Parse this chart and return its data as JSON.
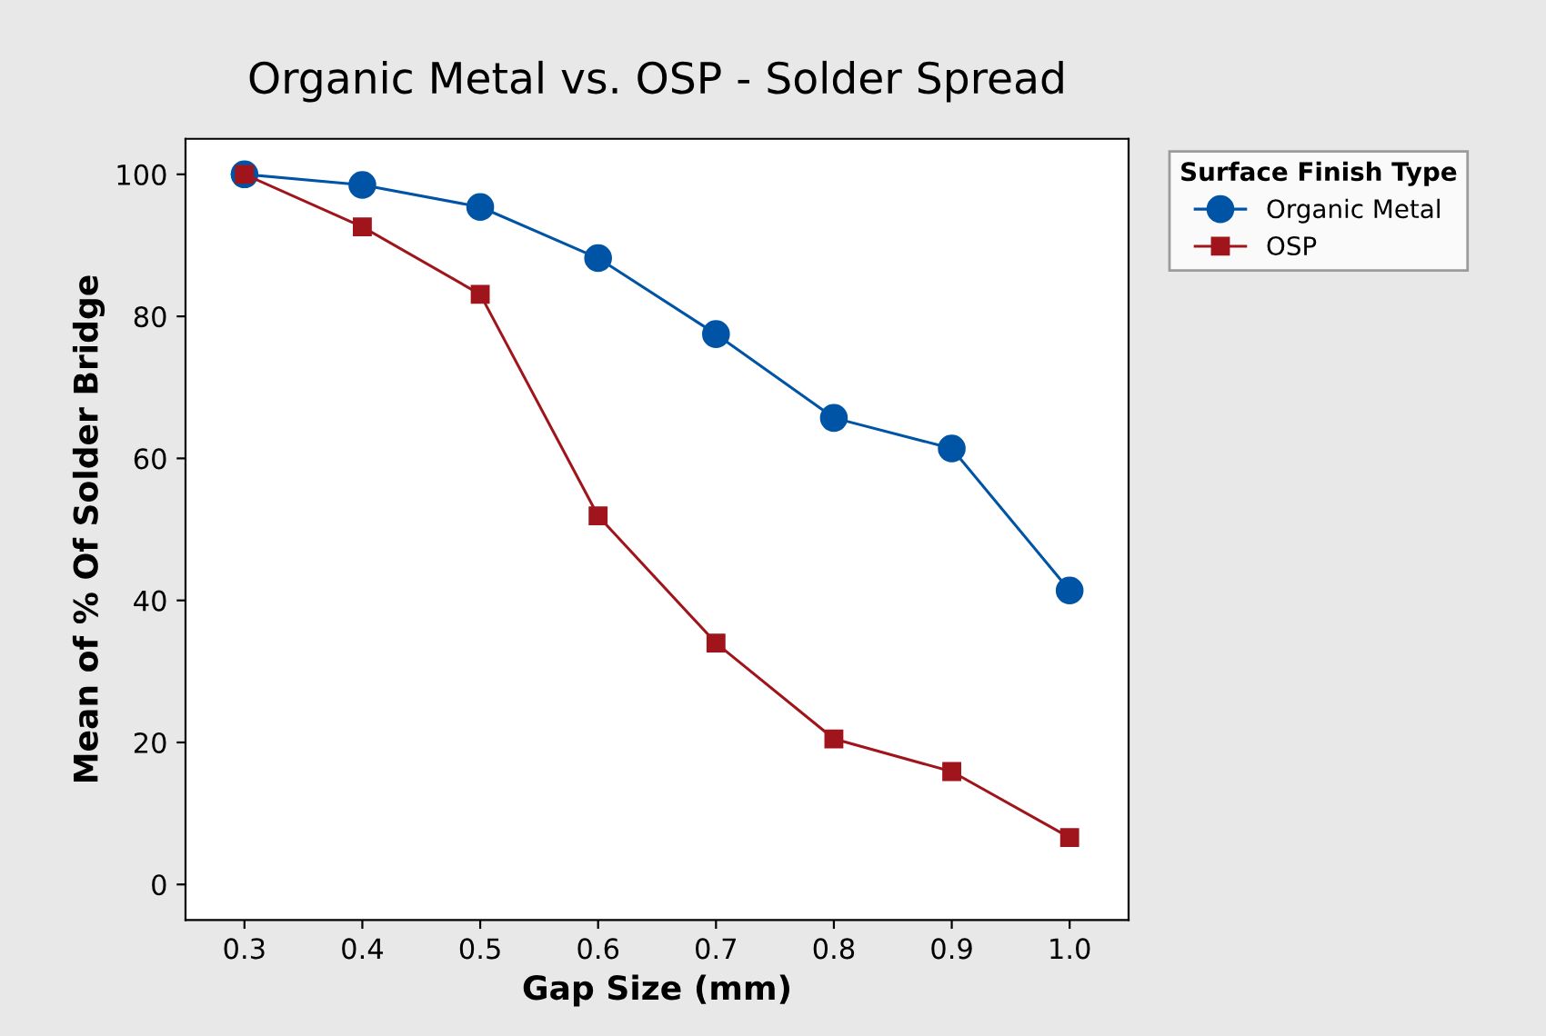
{
  "chart_data": {
    "type": "line",
    "title": "Organic Metal vs. OSP - Solder Spread",
    "xlabel": "Gap Size (mm)",
    "ylabel": "Mean of % Of Solder Bridge",
    "legend_title": "Surface Finish Type",
    "legend": "right",
    "grid": false,
    "line_style": "solid",
    "x": [
      0.3,
      0.4,
      0.5,
      0.6,
      0.7,
      0.8,
      0.9,
      1.0
    ],
    "xlim": [
      0.25,
      1.05
    ],
    "xticks": [
      {
        "value": 0.3,
        "label": "0.3"
      },
      {
        "value": 0.4,
        "label": "0.4"
      },
      {
        "value": 0.5,
        "label": "0.5"
      },
      {
        "value": 0.6,
        "label": "0.6"
      },
      {
        "value": 0.7,
        "label": "0.7"
      },
      {
        "value": 0.8,
        "label": "0.8"
      },
      {
        "value": 0.9,
        "label": "0.9"
      },
      {
        "value": 1.0,
        "label": "1.0"
      }
    ],
    "ylim": [
      -5,
      105
    ],
    "yticks": [
      0,
      20,
      40,
      60,
      80,
      100
    ],
    "series": [
      {
        "name": "Organic Metal",
        "color": "#0054a6",
        "marker": "circle",
        "values": [
          100,
          98.5,
          95.4,
          88.2,
          77.5,
          65.7,
          61.4,
          41.4
        ]
      },
      {
        "name": "OSP",
        "color": "#a0151c",
        "marker": "square",
        "values": [
          100,
          92.6,
          83.1,
          51.9,
          34.0,
          20.5,
          15.9,
          6.6
        ]
      }
    ]
  }
}
